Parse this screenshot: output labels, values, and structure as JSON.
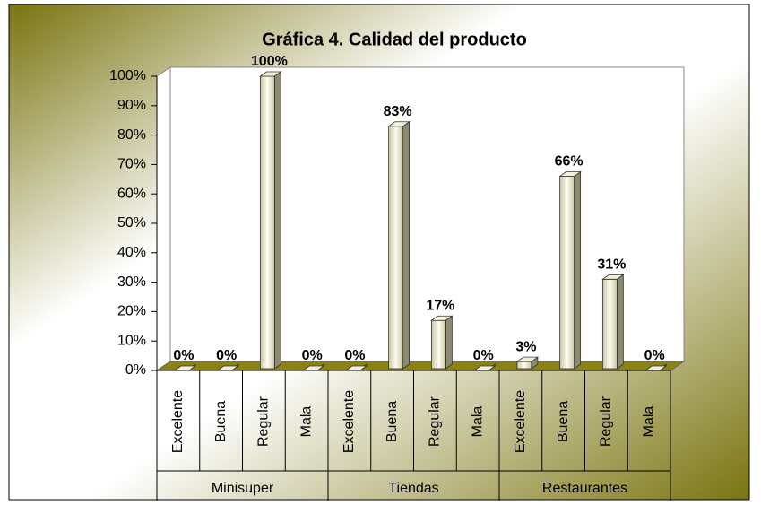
{
  "chart_data": {
    "type": "bar3d",
    "title": "Gráfica 4. Calidad del producto",
    "categories": [
      "Excelente",
      "Buena",
      "Regular",
      "Mala",
      "Excelente",
      "Buena",
      "Regular",
      "Mala",
      "Excelente",
      "Buena",
      "Regular",
      "Mala"
    ],
    "group_labels": [
      "Minisuper",
      "Tiendas",
      "Restaurantes"
    ],
    "values": [
      0,
      0,
      100,
      0,
      0,
      83,
      17,
      0,
      3,
      66,
      31,
      0
    ],
    "value_labels": [
      "0%",
      "0%",
      "100%",
      "0%",
      "0%",
      "83%",
      "17%",
      "0%",
      "3%",
      "66%",
      "31%",
      "0%"
    ],
    "color": "#f2f0d8",
    "ylim": [
      0,
      100
    ],
    "yticks": [
      {
        "value": 0,
        "label": "0%"
      },
      {
        "value": 10,
        "label": "10%"
      },
      {
        "value": 20,
        "label": "20%"
      },
      {
        "value": 30,
        "label": "30%"
      },
      {
        "value": 40,
        "label": "40%"
      },
      {
        "value": 50,
        "label": "50%"
      },
      {
        "value": 60,
        "label": "60%"
      },
      {
        "value": 70,
        "label": "70%"
      },
      {
        "value": 80,
        "label": "80%"
      },
      {
        "value": 90,
        "label": "90%"
      },
      {
        "value": 100,
        "label": "100%"
      }
    ],
    "grid": false
  }
}
